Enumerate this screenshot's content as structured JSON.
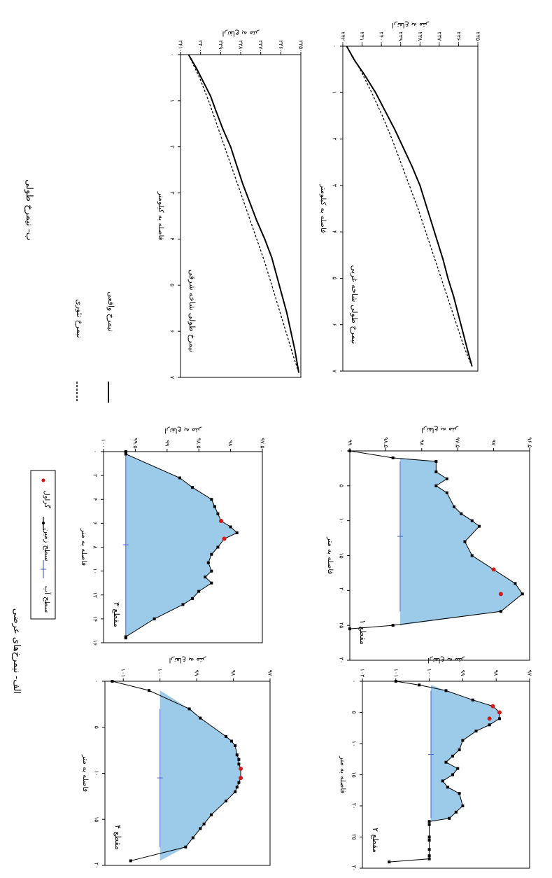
{
  "figure": {
    "part_a_title": "الف- نیمرخ‌های عرضی",
    "part_b_title": "ب- نیمرخ طولی"
  },
  "legend_cross": {
    "items": [
      {
        "label": "سطح آب",
        "color": "#4a63c8"
      },
      {
        "label": "سطح زمین",
        "color": "#000000"
      },
      {
        "label": "گراول",
        "color": "#d21a1a"
      }
    ]
  },
  "legend_long": {
    "items": [
      {
        "label": "نیمرخ واقعی",
        "style": "solid"
      },
      {
        "label": "نیمرخ تئوری",
        "style": "dashed"
      }
    ]
  },
  "colors": {
    "water_fill": "#9ccbe9",
    "water_line": "#4a63c8",
    "ground": "#000000",
    "gravel": "#d21a1a"
  },
  "chart_data": [
    {
      "id": "long-east",
      "type": "line",
      "title": "نیمرخ طولی شاخه شرقی",
      "xlabel": "فاصله به کیلومتر",
      "ylabel": "ارتفاع به متر",
      "xlim": [
        0,
        7
      ],
      "ylim": [
        2350,
        2410
      ],
      "x_ticks": [
        0,
        1,
        2,
        3,
        4,
        5,
        6,
        7
      ],
      "x_tick_labels": [
        "۰",
        "۱",
        "۲",
        "۳",
        "۴",
        "۵",
        "۶",
        "۷"
      ],
      "y_ticks": [
        2350,
        2360,
        2370,
        2380,
        2390,
        2400,
        2410
      ],
      "y_tick_labels": [
        "۲۳۵۰",
        "۲۳۶۰",
        "۲۳۷۰",
        "۲۳۸۰",
        "۲۳۹۰",
        "۲۴۰۰",
        "۲۴۱۰"
      ],
      "series": [
        {
          "name": "نیمرخ واقعی",
          "style": "solid",
          "x": [
            0,
            0.3,
            0.6,
            0.9,
            1.2,
            1.6,
            2.0,
            2.4,
            2.8,
            3.2,
            3.6,
            4.0,
            4.4,
            4.8,
            5.2,
            5.6,
            6.0,
            6.4,
            6.9
          ],
          "y": [
            2406,
            2402,
            2398.5,
            2395,
            2392.5,
            2389,
            2385,
            2382,
            2379,
            2375.5,
            2372,
            2368,
            2364.5,
            2362,
            2359.5,
            2357,
            2355,
            2353,
            2351
          ]
        },
        {
          "name": "نیمرخ تئوری",
          "style": "dashed",
          "x": [
            0,
            0.5,
            1.0,
            1.5,
            2.0,
            2.5,
            3.0,
            3.5,
            4.0,
            4.5,
            5.0,
            5.5,
            6.0,
            6.5,
            6.9
          ],
          "y": [
            2406,
            2400.5,
            2396,
            2392,
            2388,
            2384,
            2380,
            2376,
            2372,
            2368,
            2364.5,
            2361,
            2357.5,
            2354,
            2351
          ]
        }
      ]
    },
    {
      "id": "long-west",
      "type": "line",
      "title": "نیمرخ طولی شاخه غربی",
      "xlabel": "فاصله به کیلومتر",
      "ylabel": "ارتفاع به متر",
      "xlim": [
        0,
        7
      ],
      "ylim": [
        2350,
        2420
      ],
      "x_ticks": [
        0,
        1,
        2,
        3,
        4,
        5,
        6,
        7
      ],
      "x_tick_labels": [
        "۰",
        "۱",
        "۲",
        "۳",
        "۴",
        "۵",
        "۶",
        "۷"
      ],
      "y_ticks": [
        2350,
        2360,
        2370,
        2380,
        2390,
        2400,
        2410,
        2420
      ],
      "y_tick_labels": [
        "۲۳۵۰",
        "۲۳۶۰",
        "۲۳۷۰",
        "۲۳۸۰",
        "۲۳۹۰",
        "۲۴۰۰",
        "۲۴۱۰",
        "۲۴۲۰"
      ],
      "series": [
        {
          "name": "نیمرخ واقعی",
          "style": "solid",
          "x": [
            0,
            0.3,
            0.6,
            1.0,
            1.4,
            1.8,
            2.2,
            2.6,
            3.0,
            3.4,
            3.8,
            4.2,
            4.6,
            5.0,
            5.4,
            5.8,
            6.2,
            6.6,
            6.9
          ],
          "y": [
            2418,
            2414,
            2409,
            2403,
            2398,
            2393,
            2388.5,
            2384,
            2380,
            2377,
            2374,
            2371,
            2368,
            2365.5,
            2362.5,
            2360,
            2357.5,
            2355,
            2353
          ]
        },
        {
          "name": "نیمرخ تئوری",
          "style": "dashed",
          "x": [
            0,
            0.5,
            1.0,
            1.5,
            2.0,
            2.5,
            3.0,
            3.5,
            4.0,
            4.5,
            5.0,
            5.5,
            6.0,
            6.5,
            6.9
          ],
          "y": [
            2418,
            2411,
            2405,
            2399.5,
            2394.5,
            2390,
            2385.5,
            2381,
            2377,
            2373,
            2369,
            2365,
            2361,
            2357,
            2353
          ]
        }
      ]
    },
    {
      "id": "cross-1",
      "type": "area",
      "label": "مقطع ۱",
      "xlabel": "فاصله به متر",
      "ylabel": "ارتفاع به متر",
      "xlim": [
        0,
        30
      ],
      "ylim": [
        96.5,
        99
      ],
      "x_ticks": [
        0,
        5,
        10,
        15,
        20,
        25,
        30
      ],
      "x_tick_labels": [
        "۰",
        "۵",
        "۱۰",
        "۱۵",
        "۲۰",
        "۲۵",
        "۳۰"
      ],
      "y_ticks": [
        96.5,
        97,
        97.5,
        98,
        98.5,
        99
      ],
      "y_tick_labels": [
        "۹۶.۵",
        "۹۷",
        "۹۷.۵",
        "۹۸",
        "۹۸.۵",
        "۹۹"
      ],
      "water_level": 98.3,
      "ground": {
        "x": [
          0,
          1,
          1.5,
          3,
          4,
          5,
          6,
          8,
          9,
          10,
          10.8,
          13,
          15,
          17,
          19,
          20.5,
          23,
          25,
          25.5
        ],
        "y": [
          99,
          98.4,
          97.8,
          97.8,
          97.65,
          97.8,
          97.65,
          97.55,
          97.45,
          97.3,
          97.2,
          97.4,
          97.3,
          97.0,
          96.7,
          96.6,
          96.9,
          98.4,
          99
        ]
      },
      "gravel": {
        "x": [
          17,
          20.5
        ],
        "y": [
          97.0,
          96.9
        ]
      }
    },
    {
      "id": "cross-3",
      "type": "area",
      "label": "مقطع ۳",
      "xlabel": "فاصله به متر",
      "ylabel": "ارتفاع به متر",
      "xlim": [
        0,
        16
      ],
      "ylim": [
        97.5,
        100
      ],
      "x_ticks": [
        0,
        2,
        4,
        6,
        8,
        10,
        12,
        14,
        16
      ],
      "x_tick_labels": [
        "۰",
        "۲",
        "۴",
        "۶",
        "۸",
        "۱۰",
        "۱۲",
        "۱۴",
        "۱۶"
      ],
      "y_ticks": [
        97.5,
        98,
        98.5,
        99,
        99.5,
        100
      ],
      "y_tick_labels": [
        "۹۷.۵",
        "۹۸",
        "۹۸.۵",
        "۹۹",
        "۹۹.۵",
        "۱۰۰"
      ],
      "water_level": 99.65,
      "ground": {
        "x": [
          0,
          0.2,
          2.2,
          3.0,
          4.0,
          4.6,
          5.2,
          5.8,
          6.3,
          6.8,
          7.3,
          8.0,
          8.6,
          9.3,
          10.0,
          10.5,
          11.0,
          11.7,
          12.3,
          12.8,
          14.0,
          15.5,
          15.6
        ],
        "y": [
          99.65,
          99.65,
          98.8,
          98.6,
          98.3,
          98.25,
          98.2,
          98.15,
          98.0,
          97.9,
          98.1,
          98.2,
          98.3,
          98.35,
          98.3,
          98.4,
          98.3,
          98.5,
          98.6,
          98.75,
          99.2,
          99.65,
          99.65
        ]
      },
      "gravel": {
        "x": [
          5.8,
          7.3
        ],
        "y": [
          98.15,
          98.1
        ]
      }
    },
    {
      "id": "cross-2",
      "type": "area",
      "label": "مقطع ۲",
      "xlabel": "فاصله به متر",
      "ylabel": "ارتفاع به متر",
      "xlim": [
        0,
        30
      ],
      "ylim": [
        97,
        102
      ],
      "x_ticks": [
        0,
        5,
        10,
        15,
        20,
        25,
        30
      ],
      "x_tick_labels": [
        "۰",
        "۵",
        "۱۰",
        "۱۵",
        "۲۰",
        "۲۵",
        "۳۰"
      ],
      "y_ticks": [
        97,
        98,
        99,
        100,
        101,
        102
      ],
      "y_tick_labels": [
        "۹۷",
        "۹۸",
        "۹۹",
        "۱۰۰",
        "۱۰۱",
        "۱۰۲"
      ],
      "water_level": 99.95,
      "ground": {
        "x": [
          0,
          0.6,
          1.5,
          3,
          4,
          5,
          6,
          7,
          8,
          9.5,
          11,
          12,
          13,
          14,
          15,
          16,
          17,
          18,
          20,
          21,
          22,
          22.5,
          23,
          25,
          25.5,
          27,
          28,
          28.5,
          29
        ],
        "y": [
          101,
          100.3,
          99.5,
          98.7,
          98.1,
          97.9,
          97.9,
          98.2,
          98.6,
          99.0,
          99.1,
          99.3,
          99.5,
          99.15,
          99.3,
          99.6,
          99.45,
          99.1,
          99.0,
          99.2,
          99.4,
          100,
          100,
          100,
          100,
          100,
          100,
          100,
          101.2
        ]
      },
      "gravel": {
        "x": [
          4,
          5,
          6
        ],
        "y": [
          98.1,
          97.9,
          98.2
        ]
      }
    },
    {
      "id": "cross-4",
      "type": "area",
      "label": "مقطع ۴",
      "xlabel": "فاصله به متر",
      "ylabel": "ارتفاع به متر",
      "xlim": [
        0,
        20
      ],
      "ylim": [
        97,
        101.5
      ],
      "x_ticks": [
        0,
        5,
        10,
        15,
        20
      ],
      "x_tick_labels": [
        "۰",
        "۵",
        "۱۰",
        "۱۵",
        "۲۰"
      ],
      "y_ticks": [
        97,
        98,
        99,
        100,
        101
      ],
      "y_tick_labels": [
        "۹۷",
        "۹۸",
        "۹۹",
        "۱۰۰",
        "۱۰۱"
      ],
      "water_level": 100,
      "ground": {
        "x": [
          0,
          1,
          3,
          4,
          6,
          6.5,
          7,
          8,
          8.5,
          9,
          9.5,
          10.5,
          11,
          11.5,
          12,
          13,
          14.5,
          15.5,
          16,
          17,
          18,
          19.5
        ],
        "y": [
          101.3,
          100.3,
          99.2,
          98.9,
          98.2,
          98.05,
          97.95,
          97.9,
          97.85,
          97.85,
          97.8,
          97.8,
          97.85,
          97.9,
          97.95,
          98.2,
          98.6,
          98.8,
          98.9,
          99.1,
          99.3,
          100.8
        ]
      },
      "gravel": {
        "x": [
          9.5,
          10.5
        ],
        "y": [
          97.8,
          97.8
        ]
      }
    }
  ]
}
